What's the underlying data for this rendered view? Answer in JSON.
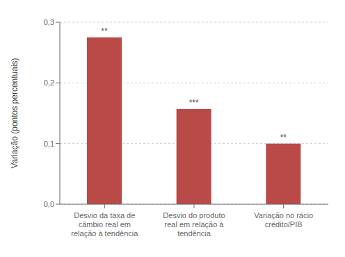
{
  "chart_data": {
    "type": "bar",
    "categories": [
      "Desvio da taxa de\ncâmbio real em\nrelação à tendência",
      "Desvio do produto\nreal em relação à\ntendência",
      "Variação no rácio\ncrédito/PIB"
    ],
    "values": [
      0.275,
      0.157,
      0.1
    ],
    "annotations": [
      "**",
      "***",
      "**"
    ],
    "color": "#b94a48",
    "ylabel": "Variação (pontos percentuais)",
    "ylim": [
      0.0,
      0.3
    ],
    "yticks": [
      {
        "value": 0.0,
        "label": "0,0"
      },
      {
        "value": 0.1,
        "label": "0,1"
      },
      {
        "value": 0.2,
        "label": "0,2"
      },
      {
        "value": 0.3,
        "label": "0,3"
      }
    ],
    "grid": true
  }
}
